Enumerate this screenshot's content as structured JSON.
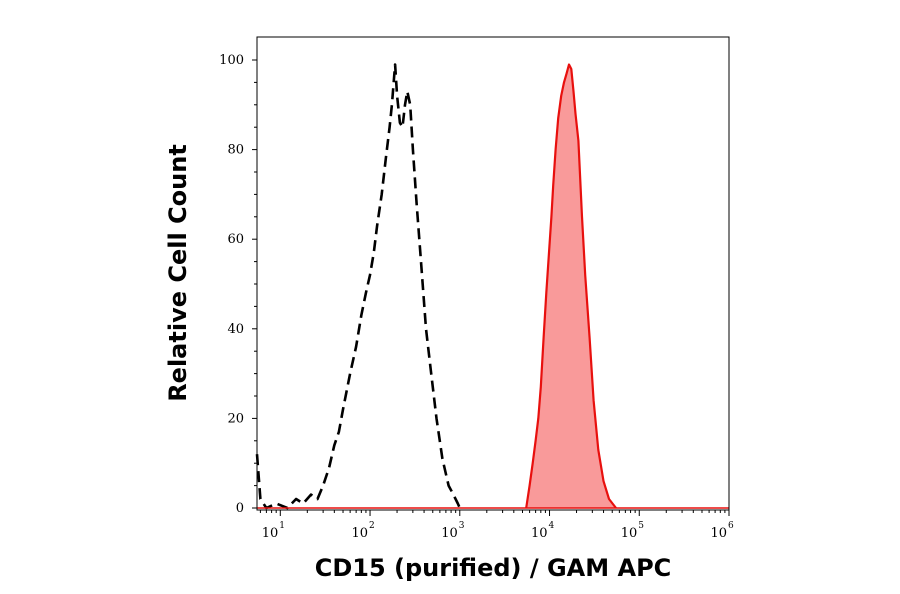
{
  "chart_data": {
    "type": "histogram",
    "xlabel": "CD15 (purified) / GAM APC",
    "ylabel": "Relative Cell Count",
    "x_scale": "log",
    "xlim": [
      5.5,
      1000000
    ],
    "ylim": [
      0,
      100
    ],
    "x_ticks": [
      {
        "base": "10",
        "exp": "1",
        "value": 10
      },
      {
        "base": "10",
        "exp": "2",
        "value": 100
      },
      {
        "base": "10",
        "exp": "3",
        "value": 1000
      },
      {
        "base": "10",
        "exp": "4",
        "value": 10000
      },
      {
        "base": "10",
        "exp": "5",
        "value": 100000
      },
      {
        "base": "10",
        "exp": "6",
        "value": 1000000
      }
    ],
    "y_ticks": [
      "0",
      "20",
      "40",
      "60",
      "80",
      "100"
    ],
    "grid": false,
    "series": [
      {
        "style": "dashed",
        "color": "#000000",
        "fill": "none",
        "points": [
          [
            5.5,
            12
          ],
          [
            6,
            2
          ],
          [
            7,
            0
          ],
          [
            9,
            1
          ],
          [
            12,
            0
          ],
          [
            15,
            2
          ],
          [
            18,
            1
          ],
          [
            22,
            3
          ],
          [
            26,
            2
          ],
          [
            30,
            5
          ],
          [
            35,
            9
          ],
          [
            40,
            14
          ],
          [
            45,
            17
          ],
          [
            50,
            22
          ],
          [
            60,
            30
          ],
          [
            70,
            36
          ],
          [
            80,
            43
          ],
          [
            90,
            48
          ],
          [
            100,
            52
          ],
          [
            110,
            57
          ],
          [
            120,
            63
          ],
          [
            135,
            70
          ],
          [
            150,
            78
          ],
          [
            165,
            85
          ],
          [
            175,
            90
          ],
          [
            190,
            99
          ],
          [
            200,
            92
          ],
          [
            215,
            86
          ],
          [
            230,
            85
          ],
          [
            245,
            90
          ],
          [
            260,
            93
          ],
          [
            280,
            90
          ],
          [
            300,
            80
          ],
          [
            330,
            68
          ],
          [
            370,
            55
          ],
          [
            420,
            40
          ],
          [
            480,
            30
          ],
          [
            550,
            20
          ],
          [
            640,
            11
          ],
          [
            750,
            5
          ],
          [
            850,
            3
          ],
          [
            950,
            1
          ],
          [
            1000,
            0
          ]
        ]
      },
      {
        "style": "solid",
        "color": "#e8100e",
        "fill": "#f99a9a",
        "points": [
          [
            5500,
            0
          ],
          [
            6000,
            5
          ],
          [
            6500,
            10
          ],
          [
            7000,
            15
          ],
          [
            7500,
            20
          ],
          [
            8000,
            27
          ],
          [
            8600,
            38
          ],
          [
            9200,
            48
          ],
          [
            9800,
            56
          ],
          [
            10500,
            65
          ],
          [
            11000,
            72
          ],
          [
            11700,
            80
          ],
          [
            12500,
            87
          ],
          [
            13500,
            92
          ],
          [
            14500,
            95
          ],
          [
            15500,
            97
          ],
          [
            16500,
            99
          ],
          [
            17500,
            98
          ],
          [
            18500,
            93
          ],
          [
            19500,
            88
          ],
          [
            21000,
            82
          ],
          [
            23000,
            65
          ],
          [
            25000,
            52
          ],
          [
            28000,
            38
          ],
          [
            31000,
            24
          ],
          [
            35000,
            13
          ],
          [
            40000,
            6
          ],
          [
            46000,
            2
          ],
          [
            55000,
            0
          ]
        ]
      }
    ]
  }
}
